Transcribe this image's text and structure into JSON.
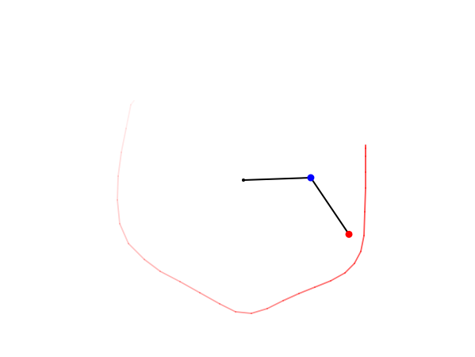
{
  "simulation": {
    "type": "double-pendulum",
    "pivot": {
      "x": 0,
      "y": 0
    },
    "arm1": {
      "length": 0.85,
      "angle_deg": 92
    },
    "arm2": {
      "length": 0.86,
      "angle_deg": 34
    }
  },
  "trail": {
    "color": "#ff0000",
    "points": [
      [
        1.54,
        0.44
      ],
      [
        1.54,
        0.4
      ],
      [
        1.54,
        0.3
      ],
      [
        1.54,
        0.1
      ],
      [
        1.54,
        -0.1
      ],
      [
        1.53,
        -0.4
      ],
      [
        1.52,
        -0.7
      ],
      [
        1.48,
        -0.9
      ],
      [
        1.4,
        -1.05
      ],
      [
        1.28,
        -1.17
      ],
      [
        1.1,
        -1.27
      ],
      [
        0.9,
        -1.35
      ],
      [
        0.7,
        -1.43
      ],
      [
        0.5,
        -1.52
      ],
      [
        0.3,
        -1.62
      ],
      [
        0.1,
        -1.68
      ],
      [
        -0.1,
        -1.66
      ],
      [
        -0.3,
        -1.56
      ],
      [
        -0.55,
        -1.42
      ],
      [
        -0.8,
        -1.28
      ],
      [
        -1.05,
        -1.15
      ],
      [
        -1.25,
        -1.0
      ],
      [
        -1.45,
        -0.8
      ],
      [
        -1.56,
        -0.55
      ],
      [
        -1.59,
        -0.25
      ],
      [
        -1.58,
        0.05
      ],
      [
        -1.54,
        0.35
      ],
      [
        -1.48,
        0.65
      ],
      [
        -1.42,
        0.95
      ],
      [
        -1.38,
        1.0
      ]
    ]
  },
  "colors": {
    "arm": "#000000",
    "pivot": "#000000",
    "bob1": "#0000ff",
    "bob2": "#ff0000"
  }
}
